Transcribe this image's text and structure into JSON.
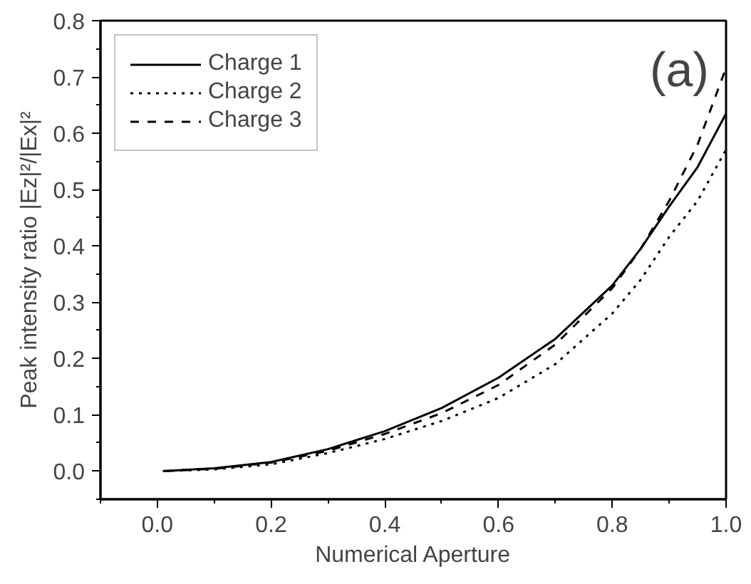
{
  "chart_data": {
    "type": "line",
    "xlabel": "Numerical Aperture",
    "ylabel": "Peak intensity ratio |Ez|²/|Ex|²",
    "annotations": [
      "(a)"
    ],
    "x": [
      0.01,
      0.1,
      0.2,
      0.3,
      0.4,
      0.5,
      0.6,
      0.7,
      0.8,
      0.85,
      0.9,
      0.95,
      1.0
    ],
    "series": [
      {
        "name": "Charge 1",
        "color": "#000000",
        "line_style": "solid",
        "values": [
          0,
          0.005,
          0.016,
          0.039,
          0.071,
          0.112,
          0.166,
          0.235,
          0.33,
          0.395,
          0.47,
          0.54,
          0.635
        ]
      },
      {
        "name": "Charge 2",
        "color": "#000000",
        "line_style": "dotted",
        "values": [
          0,
          0.003,
          0.012,
          0.032,
          0.057,
          0.089,
          0.13,
          0.19,
          0.28,
          0.34,
          0.416,
          0.48,
          0.571
        ]
      },
      {
        "name": "Charge 3",
        "color": "#000000",
        "line_style": "dashed",
        "values": [
          0,
          0.004,
          0.015,
          0.036,
          0.066,
          0.103,
          0.153,
          0.225,
          0.325,
          0.395,
          0.48,
          0.58,
          0.716
        ]
      }
    ],
    "xlim": [
      -0.1,
      1.0
    ],
    "ylim": [
      -0.05,
      0.8
    ],
    "xticks": [
      {
        "value": 0,
        "label": "0.0"
      },
      0.2,
      0.4,
      0.6,
      0.8,
      {
        "value": 1,
        "label": "1.0"
      }
    ],
    "yticks": [
      {
        "value": 0,
        "label": "0.0"
      },
      0.1,
      0.2,
      0.3,
      0.4,
      0.5,
      0.6,
      0.7,
      0.8
    ],
    "grid": false,
    "legend": "top left"
  }
}
